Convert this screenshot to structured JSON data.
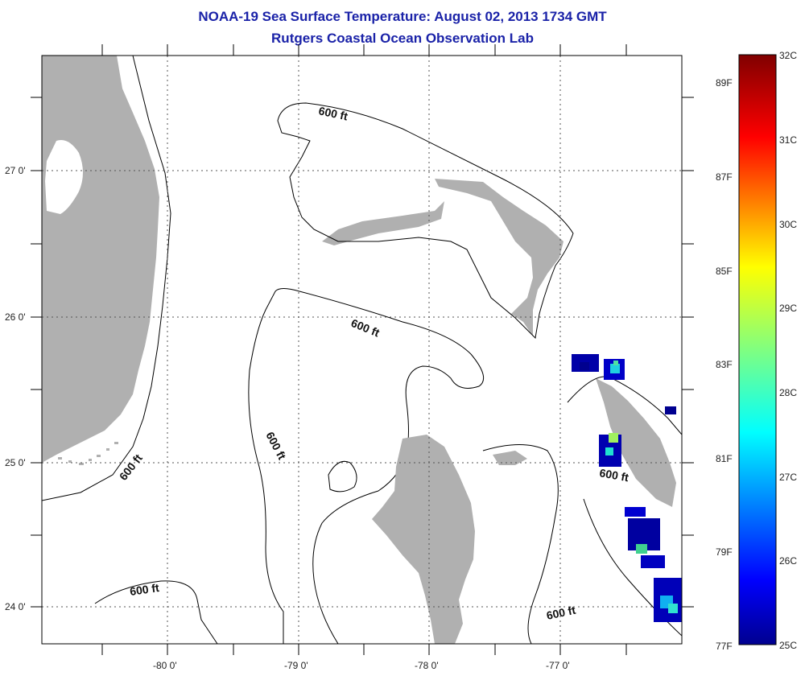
{
  "header": {
    "title": "NOAA-19 Sea Surface Temperature:  August 02, 2013 1734 GMT",
    "subtitle": "Rutgers Coastal Ocean Observation Lab"
  },
  "map": {
    "lat_labels": [
      "27 0'",
      "26 0'",
      "25 0'",
      "24 0'"
    ],
    "lon_labels": [
      "-80 0'",
      "-79 0'",
      "-78 0'",
      "-77 0'"
    ],
    "contour_labels": [
      "600 ft",
      "600 ft",
      "600 ft",
      "600 ft",
      "600 ft",
      "600 ft",
      "600 ft"
    ],
    "land_color": "#b0b0b0",
    "missing_color": "#ffffff"
  },
  "colorbar": {
    "min_celsius": 25,
    "max_celsius": 32,
    "celsius_labels": [
      "32C",
      "31C",
      "30C",
      "29C",
      "28C",
      "27C",
      "26C",
      "25C"
    ],
    "fahrenheit_labels": [
      "89F",
      "87F",
      "85F",
      "83F",
      "81F",
      "79F",
      "77F"
    ],
    "colormap": [
      "#00008f",
      "#0000ff",
      "#0080ff",
      "#00ffff",
      "#80ff80",
      "#ffff00",
      "#ff8000",
      "#ff0000",
      "#800000"
    ]
  }
}
